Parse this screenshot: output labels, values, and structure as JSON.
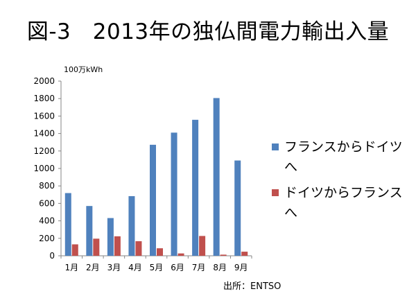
{
  "title": "図-3　2013年の独仏間電力輸出入量",
  "source": "出所：ENTSO",
  "chart_data": {
    "type": "bar",
    "unit_label": "100万kWh",
    "categories": [
      "1月",
      "2月",
      "3月",
      "4月",
      "5月",
      "6月",
      "7月",
      "8月",
      "9月"
    ],
    "series": [
      {
        "name": "フランスからドイツへ",
        "color": "#4F81BD",
        "values": [
          718,
          570,
          432,
          683,
          1271,
          1410,
          1557,
          1806,
          1091
        ]
      },
      {
        "name": "ドイツからフランスへ",
        "color": "#C0504D",
        "values": [
          131,
          196,
          223,
          167,
          86,
          27,
          227,
          13,
          47
        ]
      }
    ],
    "ylim": [
      0,
      2000
    ],
    "yticks": [
      0,
      200,
      400,
      600,
      800,
      1000,
      1200,
      1400,
      1600,
      1800,
      2000
    ],
    "grid": false,
    "legend_position": "right"
  }
}
